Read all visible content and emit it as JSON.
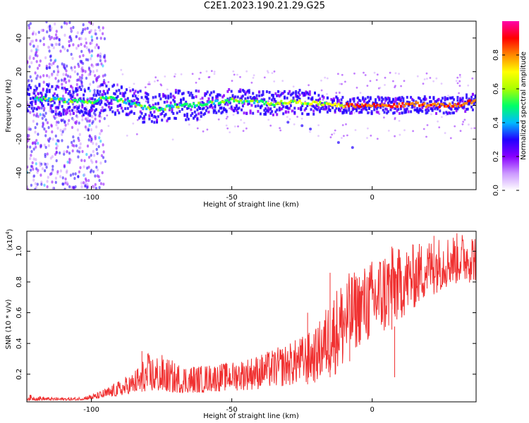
{
  "figure": {
    "title": "C2E1.2023.190.21.29.G25"
  },
  "chart_data": [
    {
      "type": "heatmap",
      "xlabel": "Height of straight line (km)",
      "ylabel": "Frequency (Hz)",
      "xlim": [
        -123,
        37
      ],
      "ylim": [
        -50,
        50
      ],
      "x_ticks": [
        -100,
        -50,
        0
      ],
      "y_ticks": [
        -40,
        -20,
        0,
        20,
        40
      ],
      "colorbar": {
        "label": "Normalized spectral amplitude",
        "range": [
          0.0,
          1.0
        ],
        "ticks": [
          0.0,
          0.2,
          0.4,
          0.6,
          0.8
        ],
        "colormap": [
          "#ffffff",
          "#cc99ff",
          "#8800ff",
          "#2200ff",
          "#00bbff",
          "#00ff66",
          "#aaff00",
          "#ffff00",
          "#ff8800",
          "#ff0000",
          "#ff00aa"
        ]
      },
      "ridge": [
        {
          "x": -118,
          "freq": 4
        },
        {
          "x": -110,
          "freq": 3
        },
        {
          "x": -100,
          "freq": 2
        },
        {
          "x": -95,
          "freq": 5
        },
        {
          "x": -90,
          "freq": 3
        },
        {
          "x": -85,
          "freq": 1
        },
        {
          "x": -80,
          "freq": -2
        },
        {
          "x": -75,
          "freq": -2
        },
        {
          "x": -70,
          "freq": 0
        },
        {
          "x": -65,
          "freq": 0
        },
        {
          "x": -60,
          "freq": 1
        },
        {
          "x": -55,
          "freq": 2
        },
        {
          "x": -50,
          "freq": 3
        },
        {
          "x": -45,
          "freq": 2
        },
        {
          "x": -40,
          "freq": 2
        },
        {
          "x": -35,
          "freq": 1
        },
        {
          "x": -30,
          "freq": 2
        },
        {
          "x": -25,
          "freq": 2
        },
        {
          "x": -20,
          "freq": 1
        },
        {
          "x": -15,
          "freq": 1
        },
        {
          "x": -10,
          "freq": 0
        },
        {
          "x": -5,
          "freq": 0
        },
        {
          "x": 0,
          "freq": 0
        },
        {
          "x": 5,
          "freq": 0
        },
        {
          "x": 10,
          "freq": 0
        },
        {
          "x": 15,
          "freq": 1
        },
        {
          "x": 20,
          "freq": 0
        },
        {
          "x": 25,
          "freq": 0
        },
        {
          "x": 30,
          "freq": 0
        },
        {
          "x": 35,
          "freq": 2
        }
      ]
    },
    {
      "type": "line",
      "xlabel": "Height of straight line (km)",
      "ylabel": "SNR (10 * v/v)",
      "y_multiplier": "(x10",
      "y_multiplier_exp": "4",
      "y_multiplier_close": ")",
      "xlim": [
        -123,
        37
      ],
      "ylim": [
        0.02,
        1.13
      ],
      "x_ticks": [
        -100,
        -50,
        0
      ],
      "y_ticks": [
        0.2,
        0.4,
        0.6,
        0.8,
        1.0
      ],
      "y_tick_labels": [
        "0.2",
        "0.4",
        "0.6",
        "0.8",
        "1.0"
      ],
      "series": [
        {
          "color": "#f03030",
          "envelope": {
            "x": [
              -123,
              -115,
              -105,
              -98,
              -90,
              -85,
              -80,
              -75,
              -70,
              -60,
              -50,
              -40,
              -30,
              -20,
              -15,
              -10,
              -5,
              0,
              5,
              10,
              15,
              20,
              25,
              30,
              37
            ],
            "min": [
              0.03,
              0.03,
              0.03,
              0.04,
              0.06,
              0.08,
              0.09,
              0.09,
              0.08,
              0.08,
              0.09,
              0.1,
              0.12,
              0.14,
              0.18,
              0.22,
              0.38,
              0.4,
              0.45,
              0.55,
              0.62,
              0.7,
              0.75,
              0.78,
              0.8
            ],
            "max": [
              0.07,
              0.05,
              0.05,
              0.08,
              0.16,
              0.22,
              0.34,
              0.33,
              0.28,
              0.26,
              0.28,
              0.33,
              0.4,
              0.5,
              0.7,
              0.85,
              0.88,
              0.95,
              1.03,
              1.02,
              1.05,
              1.08,
              1.1,
              1.12,
              1.13
            ]
          },
          "notable_points": [
            {
              "x": -82,
              "y": 0.35
            },
            {
              "x": -23,
              "y": 0.6
            },
            {
              "x": -15,
              "y": 0.86
            },
            {
              "x": -8,
              "y": 0.72
            },
            {
              "x": 7,
              "y": 1.03
            },
            {
              "x": 8,
              "y": 0.18
            },
            {
              "x": 22,
              "y": 1.1
            },
            {
              "x": 37,
              "y": 1.13
            }
          ]
        }
      ]
    }
  ]
}
